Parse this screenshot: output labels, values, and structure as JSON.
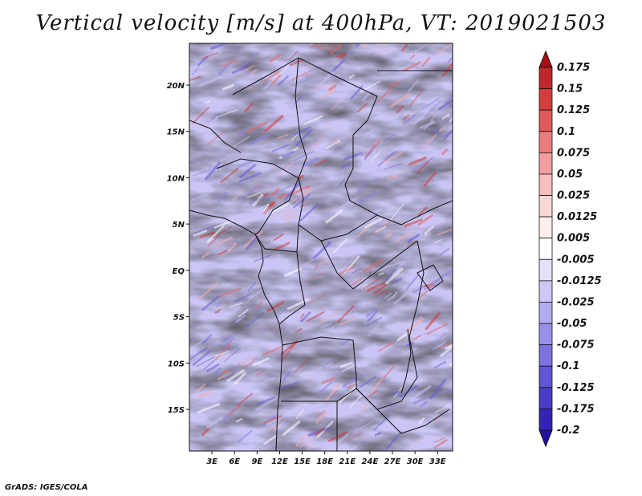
{
  "title": "Vertical velocity [m/s] at 400hPa, VT: 2019021503",
  "footer": "GrADS: IGES/COLA",
  "map": {
    "lon_range": [
      0,
      35
    ],
    "lat_range": [
      -19.5,
      24.5
    ],
    "lat_ticks": [
      "20N",
      "15N",
      "10N",
      "5N",
      "EQ",
      "5S",
      "10S",
      "15S"
    ],
    "lat_tick_values": [
      20,
      15,
      10,
      5,
      0,
      -5,
      -10,
      -15
    ],
    "lon_ticks": [
      "3E",
      "6E",
      "9E",
      "12E",
      "15E",
      "18E",
      "21E",
      "24E",
      "27E",
      "30E",
      "33E"
    ],
    "lon_tick_values": [
      3,
      6,
      9,
      12,
      15,
      18,
      21,
      24,
      27,
      30,
      33
    ]
  },
  "colorbar": {
    "labels": [
      "0.175",
      "0.15",
      "0.125",
      "0.1",
      "0.075",
      "0.05",
      "0.025",
      "0.0125",
      "0.005",
      "-0.005",
      "-0.0125",
      "-0.025",
      "-0.05",
      "-0.075",
      "-0.1",
      "-0.125",
      "-0.175",
      "-0.2"
    ],
    "colors": [
      "#a50f15",
      "#c0272d",
      "#d43d3d",
      "#e25a5a",
      "#ec7c7c",
      "#f39e9e",
      "#f8bdbd",
      "#fbd6d6",
      "#fdeded",
      "#ffffff",
      "#e4e2fb",
      "#cdc8f6",
      "#b3acf0",
      "#9a90ea",
      "#7e72e2",
      "#6255d6",
      "#4a3cc8",
      "#3523b5",
      "#23109c"
    ]
  }
}
